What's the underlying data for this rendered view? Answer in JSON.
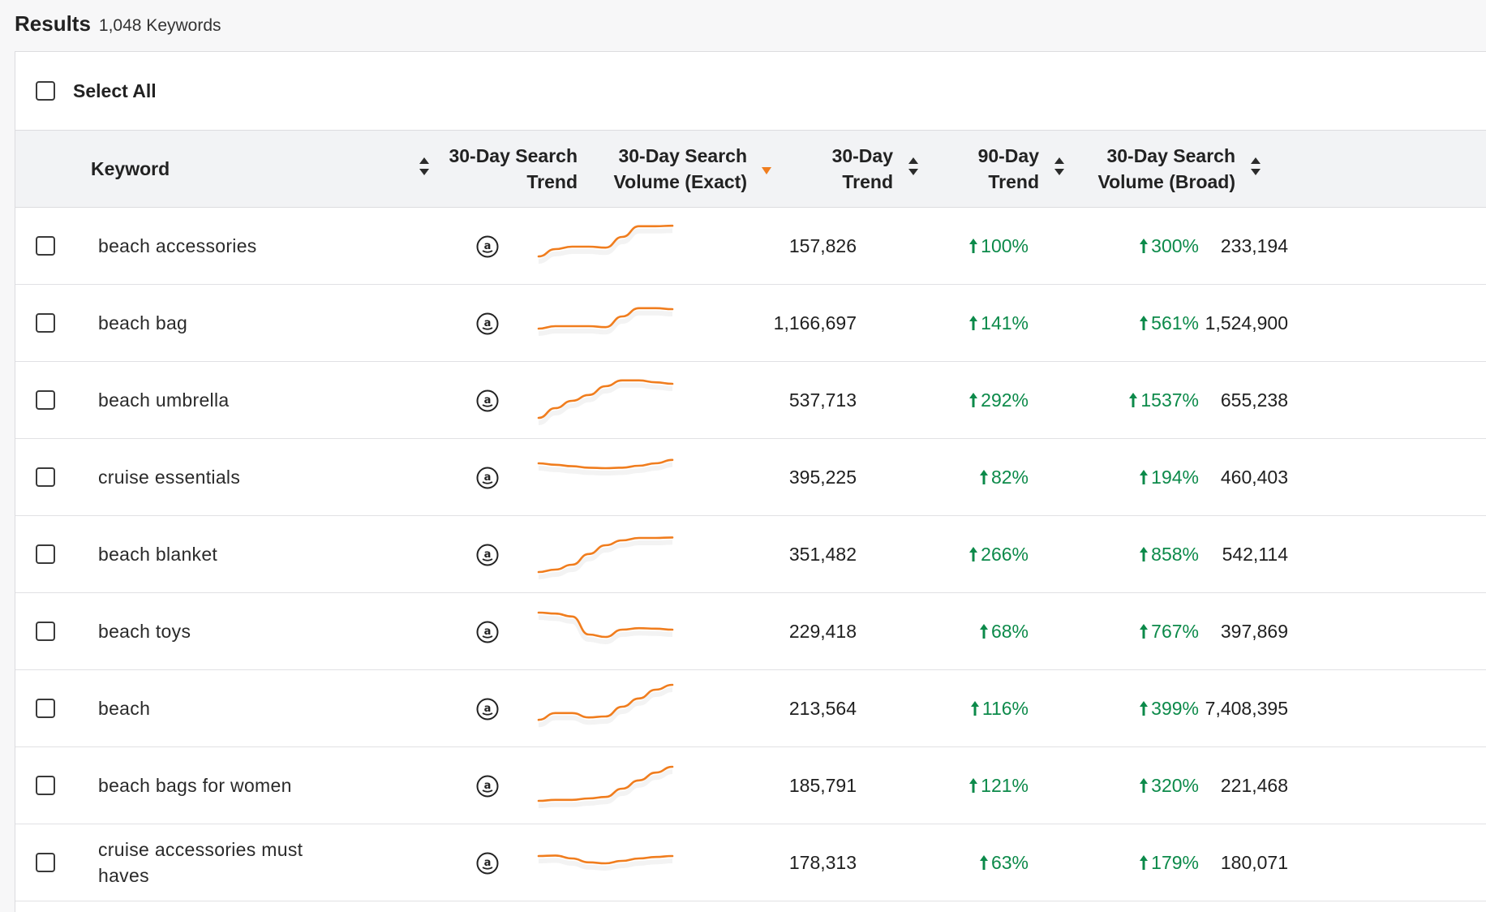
{
  "header": {
    "title": "Results",
    "count": "1,048 Keywords"
  },
  "select_all_label": "Select All",
  "columns": {
    "keyword": "Keyword",
    "search_trend": [
      "30-Day Search",
      "Trend"
    ],
    "volume_exact": [
      "30-Day Search",
      "Volume (Exact)"
    ],
    "trend_30": [
      "30-Day",
      "Trend"
    ],
    "trend_90": [
      "90-Day",
      "Trend"
    ],
    "volume_broad": [
      "30-Day Search",
      "Volume (Broad)"
    ]
  },
  "colors": {
    "sparkline": "#f07d1e",
    "positive": "#0c8a4a",
    "sort_active": "#f07d1e"
  },
  "icons": {
    "source": "amazon-icon",
    "trend_up": "arrow-up-icon"
  },
  "rows": [
    {
      "keyword": "beach accessories",
      "volume_exact": "157,826",
      "trend_30": "100%",
      "trend_90": "300%",
      "volume_broad": "233,194",
      "spark": [
        0.3,
        0.45,
        0.5,
        0.5,
        0.48,
        0.7,
        0.92,
        0.92,
        0.93
      ]
    },
    {
      "keyword": "beach bag",
      "volume_exact": "1,166,697",
      "trend_30": "141%",
      "trend_90": "561%",
      "volume_broad": "1,524,900",
      "spark": [
        0.4,
        0.45,
        0.45,
        0.45,
        0.43,
        0.65,
        0.82,
        0.82,
        0.8
      ]
    },
    {
      "keyword": "beach umbrella",
      "volume_exact": "537,713",
      "trend_30": "292%",
      "trend_90": "1537%",
      "volume_broad": "655,238",
      "spark": [
        0.15,
        0.35,
        0.5,
        0.62,
        0.8,
        0.92,
        0.92,
        0.88,
        0.85
      ]
    },
    {
      "keyword": "cruise essentials",
      "volume_exact": "395,225",
      "trend_30": "82%",
      "trend_90": "194%",
      "volume_broad": "460,403",
      "spark": [
        0.8,
        0.77,
        0.74,
        0.71,
        0.7,
        0.71,
        0.75,
        0.8,
        0.87
      ]
    },
    {
      "keyword": "beach blanket",
      "volume_exact": "351,482",
      "trend_30": "266%",
      "trend_90": "858%",
      "volume_broad": "542,114",
      "spark": [
        0.15,
        0.2,
        0.3,
        0.52,
        0.7,
        0.8,
        0.85,
        0.85,
        0.86
      ]
    },
    {
      "keyword": "beach toys",
      "volume_exact": "229,418",
      "trend_30": "68%",
      "trend_90": "767%",
      "volume_broad": "397,869",
      "spark": [
        0.9,
        0.88,
        0.82,
        0.45,
        0.4,
        0.55,
        0.58,
        0.57,
        0.55
      ]
    },
    {
      "keyword": "beach",
      "volume_exact": "213,564",
      "trend_30": "116%",
      "trend_90": "399%",
      "volume_broad": "7,408,395",
      "spark": [
        0.28,
        0.42,
        0.42,
        0.33,
        0.35,
        0.55,
        0.72,
        0.9,
        1.0
      ]
    },
    {
      "keyword": "beach bags for women",
      "volume_exact": "185,791",
      "trend_30": "121%",
      "trend_90": "320%",
      "volume_broad": "221,468",
      "spark": [
        0.2,
        0.22,
        0.22,
        0.25,
        0.28,
        0.45,
        0.62,
        0.78,
        0.9
      ]
    },
    {
      "keyword": "cruise accessories must haves",
      "volume_exact": "178,313",
      "trend_30": "63%",
      "trend_90": "179%",
      "volume_broad": "180,071",
      "spark": [
        0.65,
        0.66,
        0.6,
        0.52,
        0.5,
        0.55,
        0.6,
        0.63,
        0.65
      ]
    }
  ]
}
